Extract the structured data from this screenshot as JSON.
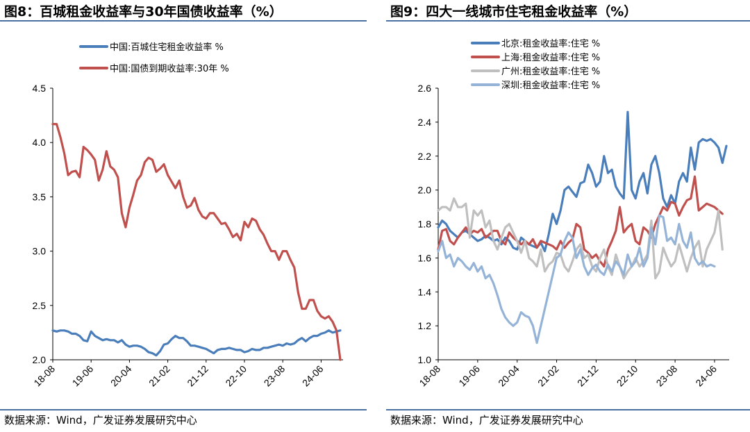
{
  "left": {
    "title": "图8：百城租金收益率与30年国债收益率（%）",
    "source": "数据来源：Wind，广发证券发展研究中心"
  },
  "right": {
    "title": "图9：四大一线城市住宅租金收益率（%）",
    "source": "数据来源：Wind，广发证券发展研究中心"
  },
  "chart_data": [
    {
      "type": "line",
      "title": "图8：百城租金收益率与30年国债收益率（%）",
      "xlabel": "",
      "ylabel": "",
      "ylim": [
        2.0,
        4.5
      ],
      "yticks": [
        "2.0",
        "2.5",
        "3.0",
        "3.5",
        "4.0",
        "4.5"
      ],
      "xticks": [
        "18-08",
        "19-06",
        "20-04",
        "21-02",
        "21-12",
        "22-10",
        "23-08",
        "24-06"
      ],
      "x_start": "2018-08",
      "x_frequency": "monthly",
      "legend_position": "top",
      "grid": false,
      "series": [
        {
          "name": "中国:百城住宅租金收益率 %",
          "color": "#4a7ebb",
          "values": [
            2.27,
            2.26,
            2.27,
            2.27,
            2.26,
            2.24,
            2.24,
            2.22,
            2.18,
            2.17,
            2.26,
            2.22,
            2.2,
            2.18,
            2.19,
            2.18,
            2.18,
            2.16,
            2.18,
            2.14,
            2.12,
            2.13,
            2.13,
            2.12,
            2.1,
            2.07,
            2.06,
            2.04,
            2.08,
            2.14,
            2.15,
            2.19,
            2.22,
            2.2,
            2.2,
            2.17,
            2.13,
            2.13,
            2.12,
            2.11,
            2.1,
            2.08,
            2.06,
            2.09,
            2.1,
            2.1,
            2.11,
            2.1,
            2.09,
            2.09,
            2.07,
            2.08,
            2.1,
            2.09,
            2.09,
            2.11,
            2.11,
            2.12,
            2.13,
            2.14,
            2.13,
            2.15,
            2.14,
            2.15,
            2.18,
            2.2,
            2.17,
            2.2,
            2.22,
            2.22,
            2.24,
            2.25,
            2.27,
            2.25,
            2.26,
            2.27
          ]
        },
        {
          "name": "中国:国债到期收益率:30年 %",
          "color": "#c0504d",
          "values": [
            4.17,
            4.17,
            4.05,
            3.9,
            3.7,
            3.73,
            3.74,
            3.68,
            3.96,
            3.93,
            3.89,
            3.84,
            3.65,
            3.75,
            3.92,
            3.78,
            3.75,
            3.68,
            3.35,
            3.22,
            3.4,
            3.52,
            3.65,
            3.7,
            3.82,
            3.86,
            3.84,
            3.73,
            3.76,
            3.8,
            3.7,
            3.64,
            3.58,
            3.65,
            3.5,
            3.4,
            3.42,
            3.49,
            3.38,
            3.32,
            3.3,
            3.35,
            3.35,
            3.3,
            3.25,
            3.26,
            3.2,
            3.13,
            3.16,
            3.1,
            3.27,
            3.22,
            3.3,
            3.28,
            3.2,
            3.15,
            3.07,
            3.0,
            3.0,
            2.92,
            3.0,
            3.0,
            2.92,
            2.85,
            2.62,
            2.47,
            2.47,
            2.55,
            2.55,
            2.45,
            2.4,
            2.38,
            2.4,
            2.35,
            2.27,
            2.0
          ]
        }
      ]
    },
    {
      "type": "line",
      "title": "图9：四大一线城市住宅租金收益率（%）",
      "xlabel": "",
      "ylabel": "",
      "ylim": [
        1.0,
        2.6
      ],
      "yticks": [
        "1.0",
        "1.2",
        "1.4",
        "1.6",
        "1.8",
        "2.0",
        "2.2",
        "2.4",
        "2.6"
      ],
      "xticks": [
        "18-08",
        "19-06",
        "20-04",
        "21-02",
        "21-12",
        "22-10",
        "23-08",
        "24-06"
      ],
      "x_start": "2018-08",
      "x_frequency": "monthly",
      "legend_position": "top-left",
      "grid": false,
      "series": [
        {
          "name": "北京:租金收益率:住宅 %",
          "color": "#4a7ebb",
          "values": [
            1.78,
            1.82,
            1.8,
            1.76,
            1.74,
            1.72,
            1.75,
            1.76,
            1.74,
            1.72,
            1.7,
            1.71,
            1.73,
            1.72,
            1.7,
            1.71,
            1.68,
            1.72,
            1.7,
            1.66,
            1.65,
            1.72,
            1.7,
            1.68,
            1.67,
            1.66,
            1.69,
            1.64,
            1.74,
            1.86,
            1.8,
            1.88,
            2.0,
            2.02,
            1.99,
            1.96,
            2.04,
            2.05,
            2.15,
            2.1,
            2.02,
            2.05,
            2.2,
            2.1,
            2.12,
            2.02,
            1.98,
            1.95,
            2.46,
            2.0,
            1.95,
            2.05,
            2.1,
            1.98,
            2.15,
            2.2,
            2.1,
            1.95,
            1.9,
            1.97,
            1.92,
            2.05,
            2.1,
            2.05,
            2.25,
            2.12,
            2.28,
            2.3,
            2.29,
            2.3,
            2.28,
            2.25,
            2.16,
            2.26
          ]
        },
        {
          "name": "上海:租金收益率:住宅 %",
          "color": "#c0504d",
          "values": [
            1.65,
            1.76,
            1.77,
            1.7,
            1.68,
            1.72,
            1.75,
            1.78,
            1.74,
            1.76,
            1.75,
            1.77,
            1.72,
            1.74,
            1.76,
            1.76,
            1.7,
            1.68,
            1.75,
            1.72,
            1.7,
            1.68,
            1.7,
            1.68,
            1.71,
            1.66,
            1.7,
            1.69,
            1.68,
            1.67,
            1.65,
            1.7,
            1.66,
            1.69,
            1.71,
            1.8,
            1.78,
            1.65,
            1.63,
            1.6,
            1.62,
            1.58,
            1.55,
            1.65,
            1.7,
            1.76,
            1.9,
            1.75,
            1.78,
            1.8,
            1.7,
            1.68,
            1.78,
            1.76,
            1.72,
            1.8,
            1.85,
            1.9,
            1.88,
            1.93,
            1.92,
            1.85,
            1.9,
            1.94,
            1.95,
            2.08,
            1.88,
            1.9,
            1.92,
            1.91,
            1.9,
            1.88,
            1.86
          ]
        },
        {
          "name": "广州:租金收益率:住宅 %",
          "color": "#bfbfbf",
          "values": [
            1.88,
            1.9,
            1.9,
            1.88,
            1.95,
            1.9,
            1.9,
            1.92,
            1.72,
            1.88,
            1.85,
            1.88,
            1.78,
            1.82,
            1.7,
            1.65,
            1.72,
            1.78,
            1.8,
            1.75,
            1.7,
            1.63,
            1.7,
            1.6,
            1.58,
            1.55,
            1.65,
            1.52,
            1.56,
            1.58,
            1.63,
            1.62,
            1.55,
            1.52,
            1.58,
            1.65,
            1.68,
            1.6,
            1.62,
            1.55,
            1.52,
            1.6,
            1.65,
            1.55,
            1.5,
            1.62,
            1.55,
            1.48,
            1.52,
            1.55,
            1.6,
            1.55,
            1.58,
            1.62,
            1.82,
            1.48,
            1.52,
            1.66,
            1.6,
            1.55,
            1.58,
            1.68,
            1.6,
            1.52,
            1.6,
            1.66,
            1.7,
            1.55,
            1.65,
            1.7,
            1.75,
            1.88,
            1.65
          ]
        },
        {
          "name": "深圳:租金收益率:住宅 %",
          "color": "#95b3d7",
          "values": [
            1.64,
            1.7,
            1.6,
            1.62,
            1.55,
            1.6,
            1.58,
            1.55,
            1.53,
            1.57,
            1.52,
            1.55,
            1.48,
            1.5,
            1.45,
            1.38,
            1.3,
            1.25,
            1.22,
            1.2,
            1.22,
            1.28,
            1.26,
            1.25,
            1.2,
            1.1,
            1.2,
            1.3,
            1.4,
            1.5,
            1.6,
            1.62,
            1.7,
            1.75,
            1.72,
            1.6,
            1.65,
            1.55,
            1.5,
            1.54,
            1.56,
            1.52,
            1.5,
            1.56,
            1.52,
            1.58,
            1.55,
            1.5,
            1.62,
            1.55,
            1.58,
            1.66,
            1.55,
            1.6,
            1.78,
            1.68,
            1.85,
            1.84,
            1.7,
            1.72,
            1.68,
            1.8,
            1.7,
            1.66,
            1.75,
            1.6,
            1.56,
            1.58,
            1.55,
            1.56,
            1.55
          ]
        }
      ]
    }
  ]
}
